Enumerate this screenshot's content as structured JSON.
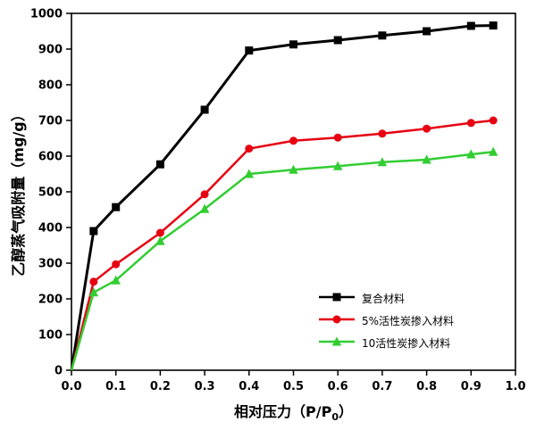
{
  "chart_data": {
    "type": "line",
    "title": "",
    "xlabel_prefix": "相对压力（P/P",
    "xlabel_sub": "0",
    "xlabel_suffix": "）",
    "ylabel": "乙醇蒸气吸附量（mg/g）",
    "xlim": [
      0.0,
      1.0
    ],
    "ylim": [
      0,
      1000
    ],
    "grid": false,
    "legend_position": "inside lower right",
    "x_tick_labels": [
      "0.0",
      "0.1",
      "0.2",
      "0.3",
      "0.4",
      "0.5",
      "0.6",
      "0.7",
      "0.8",
      "0.9",
      "1.0"
    ],
    "x_tick_values": [
      0.0,
      0.1,
      0.2,
      0.3,
      0.4,
      0.5,
      0.6,
      0.7,
      0.8,
      0.9,
      1.0
    ],
    "y_tick_labels": [
      "0",
      "100",
      "200",
      "300",
      "400",
      "500",
      "600",
      "700",
      "800",
      "900",
      "1000"
    ],
    "y_tick_values": [
      0,
      100,
      200,
      300,
      400,
      500,
      600,
      700,
      800,
      900,
      1000
    ],
    "x": [
      0,
      0.05,
      0.1,
      0.2,
      0.3,
      0.4,
      0.5,
      0.6,
      0.7,
      0.8,
      0.9,
      0.95
    ],
    "series": [
      {
        "name": "复合材料",
        "color": "#000000",
        "marker": "square",
        "line_width": 3,
        "values": [
          0,
          390,
          457,
          577,
          730,
          896,
          913,
          925,
          938,
          950,
          965,
          966
        ]
      },
      {
        "name": "5%活性炭掺入材料",
        "color": "#e60012",
        "marker": "circle",
        "line_width": 2.5,
        "values": [
          0,
          248,
          297,
          385,
          493,
          621,
          643,
          652,
          663,
          677,
          693,
          700
        ]
      },
      {
        "name": "10活性炭掺入材料",
        "color": "#32cd32",
        "marker": "triangle",
        "line_width": 2.5,
        "values": [
          0,
          218,
          252,
          362,
          452,
          550,
          562,
          572,
          583,
          590,
          605,
          612
        ]
      }
    ]
  }
}
